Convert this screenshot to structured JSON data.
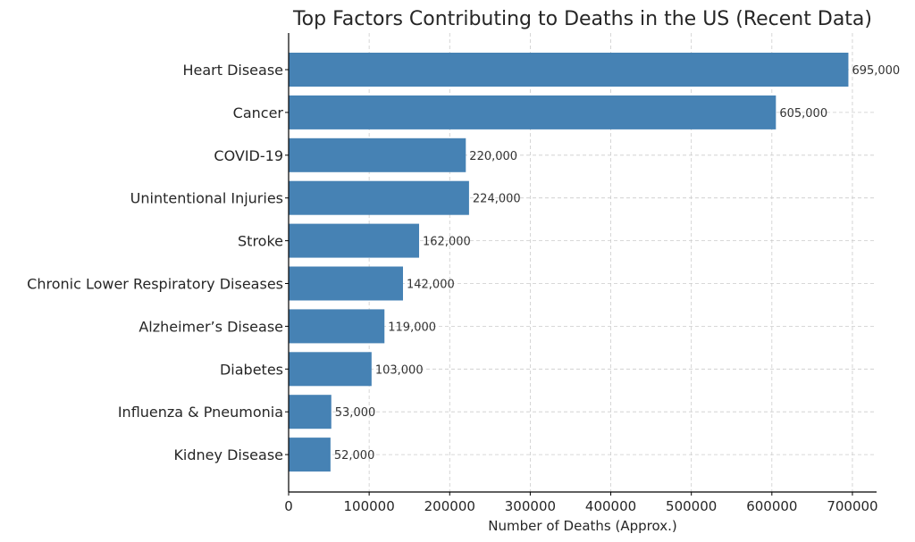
{
  "colors": {
    "bar": "#4682b4",
    "grid": "#cccccc",
    "text": "#262626"
  },
  "chart_data": {
    "type": "bar",
    "orientation": "horizontal",
    "title": "Top Factors Contributing to Deaths in the US (Recent Data)",
    "xlabel": "Number of Deaths (Approx.)",
    "ylabel": "",
    "xlim": [
      0,
      730000
    ],
    "xticks": [
      0,
      100000,
      200000,
      300000,
      400000,
      500000,
      600000,
      700000
    ],
    "xtick_labels": [
      "0",
      "100000",
      "200000",
      "300000",
      "400000",
      "500000",
      "600000",
      "700000"
    ],
    "grid": true,
    "categories": [
      "Heart Disease",
      "Cancer",
      "COVID-19",
      "Unintentional Injuries",
      "Stroke",
      "Chronic Lower Respiratory Diseases",
      "Alzheimer’s Disease",
      "Diabetes",
      "Influenza & Pneumonia",
      "Kidney Disease"
    ],
    "values": [
      695000,
      605000,
      220000,
      224000,
      162000,
      142000,
      119000,
      103000,
      53000,
      52000
    ],
    "value_labels": [
      "695,000",
      "605,000",
      "220,000",
      "224,000",
      "162,000",
      "142,000",
      "119,000",
      "103,000",
      "53,000",
      "52,000"
    ]
  }
}
